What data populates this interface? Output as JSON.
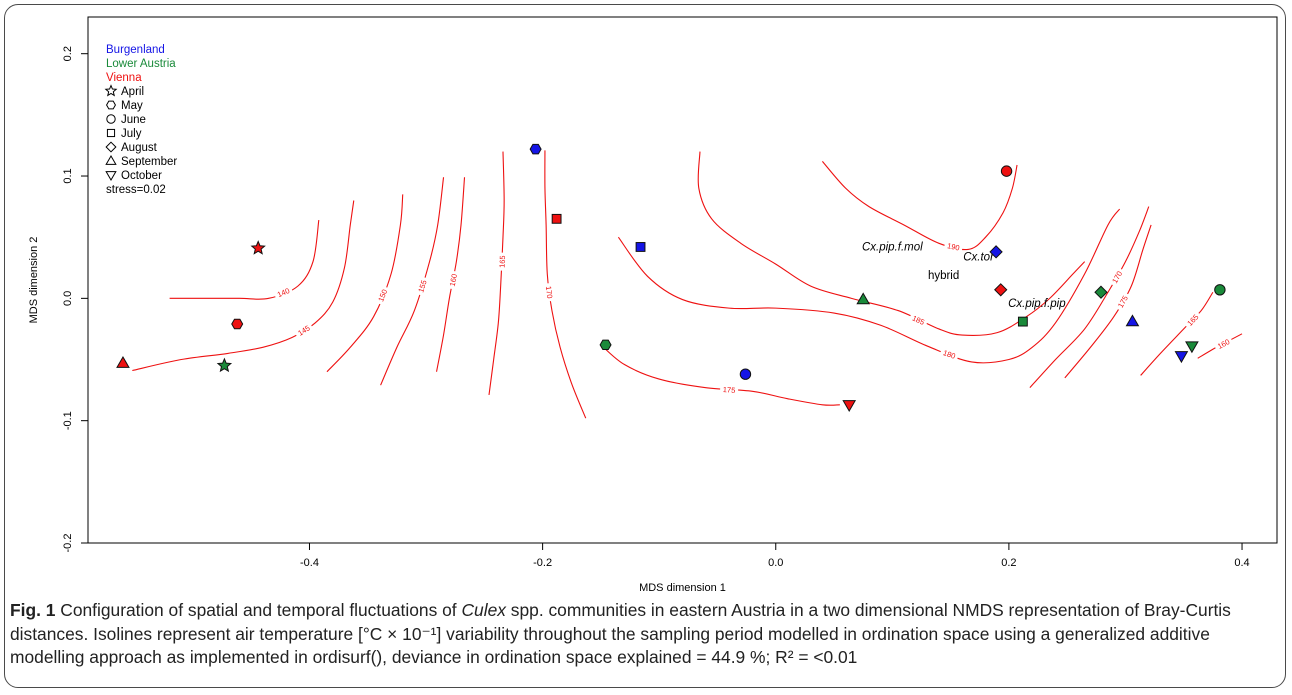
{
  "chart_data": {
    "type": "scatter",
    "xlabel": "MDS dimension 1",
    "ylabel": "MDS dimension 2",
    "xlim": [
      -0.59,
      0.43
    ],
    "ylim": [
      -0.2,
      0.23
    ],
    "xticks": [
      "-0.4",
      "-0.2",
      "0.0",
      "0.2",
      "0.4"
    ],
    "xtick_values": [
      -0.4,
      -0.2,
      0.0,
      0.2,
      0.4
    ],
    "yticks": [
      "-0.2",
      "-0.1",
      "0.0",
      "0.1",
      "0.2"
    ],
    "ytick_values": [
      -0.2,
      -0.1,
      0.0,
      0.1,
      0.2
    ],
    "grid": false,
    "legend_position": "top-left",
    "legend": {
      "regions": [
        {
          "label": "Burgenland",
          "color": "#1515e6"
        },
        {
          "label": "Lower Austria",
          "color": "#1a8a3a"
        },
        {
          "label": "Vienna",
          "color": "#ee1111"
        }
      ],
      "months": [
        {
          "label": "April",
          "shape": "star"
        },
        {
          "label": "May",
          "shape": "hexagon"
        },
        {
          "label": "June",
          "shape": "circle"
        },
        {
          "label": "July",
          "shape": "square"
        },
        {
          "label": "August",
          "shape": "diamond"
        },
        {
          "label": "September",
          "shape": "triangle-up"
        },
        {
          "label": "October",
          "shape": "triangle-down"
        }
      ],
      "stress": "stress=0.02"
    },
    "points": [
      {
        "x": -0.206,
        "y": 0.122,
        "region": "Burgenland",
        "month": "May"
      },
      {
        "x": -0.026,
        "y": -0.062,
        "region": "Burgenland",
        "month": "June"
      },
      {
        "x": -0.116,
        "y": 0.042,
        "region": "Burgenland",
        "month": "July"
      },
      {
        "x": 0.189,
        "y": 0.038,
        "region": "Burgenland",
        "month": "August"
      },
      {
        "x": 0.306,
        "y": -0.019,
        "region": "Burgenland",
        "month": "September"
      },
      {
        "x": 0.348,
        "y": -0.047,
        "region": "Burgenland",
        "month": "October"
      },
      {
        "x": -0.473,
        "y": -0.055,
        "region": "Lower Austria",
        "month": "April"
      },
      {
        "x": -0.146,
        "y": -0.038,
        "region": "Lower Austria",
        "month": "May"
      },
      {
        "x": 0.381,
        "y": 0.007,
        "region": "Lower Austria",
        "month": "June"
      },
      {
        "x": 0.212,
        "y": -0.019,
        "region": "Lower Austria",
        "month": "July"
      },
      {
        "x": 0.279,
        "y": 0.005,
        "region": "Lower Austria",
        "month": "August"
      },
      {
        "x": 0.075,
        "y": -0.001,
        "region": "Lower Austria",
        "month": "September"
      },
      {
        "x": 0.357,
        "y": -0.039,
        "region": "Lower Austria",
        "month": "October"
      },
      {
        "x": -0.444,
        "y": 0.041,
        "region": "Vienna",
        "month": "April"
      },
      {
        "x": -0.462,
        "y": -0.021,
        "region": "Vienna",
        "month": "May"
      },
      {
        "x": 0.198,
        "y": 0.104,
        "region": "Vienna",
        "month": "June"
      },
      {
        "x": -0.188,
        "y": 0.065,
        "region": "Vienna",
        "month": "July"
      },
      {
        "x": 0.193,
        "y": 0.007,
        "region": "Vienna",
        "month": "August"
      },
      {
        "x": -0.56,
        "y": -0.053,
        "region": "Vienna",
        "month": "September"
      },
      {
        "x": 0.063,
        "y": -0.087,
        "region": "Vienna",
        "month": "October"
      }
    ],
    "species_labels": [
      {
        "text": "Cx.pip.f.mol",
        "x": 0.1,
        "y": 0.039,
        "italic": true
      },
      {
        "text": "Cx.tor",
        "x": 0.174,
        "y": 0.031,
        "italic": true
      },
      {
        "text": "hybrid",
        "x": 0.144,
        "y": 0.016,
        "italic": false
      },
      {
        "text": "Cx.pip.f.pip",
        "x": 0.224,
        "y": -0.007,
        "italic": true
      }
    ],
    "contours": [
      {
        "level": "140",
        "color": "#ee1111",
        "points": [
          [
            -0.52,
            0.0
          ],
          [
            -0.49,
            0.0
          ],
          [
            -0.46,
            0.0
          ],
          [
            -0.435,
            0.0
          ],
          [
            -0.41,
            0.01
          ],
          [
            -0.397,
            0.03
          ],
          [
            -0.392,
            0.064
          ]
        ]
      },
      {
        "level": "145",
        "color": "#ee1111",
        "points": [
          [
            -0.552,
            -0.059
          ],
          [
            -0.51,
            -0.05
          ],
          [
            -0.47,
            -0.045
          ],
          [
            -0.44,
            -0.04
          ],
          [
            -0.415,
            -0.032
          ],
          [
            -0.395,
            -0.02
          ],
          [
            -0.38,
            -0.003
          ],
          [
            -0.37,
            0.025
          ],
          [
            -0.365,
            0.06
          ],
          [
            -0.362,
            0.08
          ]
        ]
      },
      {
        "level": "150",
        "color": "#ee1111",
        "points": [
          [
            -0.385,
            -0.06
          ],
          [
            -0.365,
            -0.04
          ],
          [
            -0.345,
            -0.015
          ],
          [
            -0.33,
            0.02
          ],
          [
            -0.322,
            0.06
          ],
          [
            -0.32,
            0.085
          ]
        ]
      },
      {
        "level": "155",
        "color": "#ee1111",
        "points": [
          [
            -0.339,
            -0.071
          ],
          [
            -0.325,
            -0.04
          ],
          [
            -0.31,
            -0.01
          ],
          [
            -0.297,
            0.03
          ],
          [
            -0.29,
            0.06
          ],
          [
            -0.285,
            0.099
          ]
        ]
      },
      {
        "level": "160",
        "color": "#ee1111",
        "points": [
          [
            -0.291,
            -0.06
          ],
          [
            -0.285,
            -0.03
          ],
          [
            -0.28,
            0.0
          ],
          [
            -0.274,
            0.03
          ],
          [
            -0.27,
            0.06
          ],
          [
            -0.267,
            0.099
          ]
        ]
      },
      {
        "level": "165",
        "color": "#ee1111",
        "points": [
          [
            -0.246,
            -0.079
          ],
          [
            -0.242,
            -0.05
          ],
          [
            -0.238,
            -0.02
          ],
          [
            -0.236,
            0.01
          ],
          [
            -0.234,
            0.05
          ],
          [
            -0.233,
            0.08
          ],
          [
            -0.234,
            0.12
          ]
        ]
      },
      {
        "level": "170",
        "color": "#ee1111",
        "points": [
          [
            -0.163,
            -0.098
          ],
          [
            -0.175,
            -0.07
          ],
          [
            -0.185,
            -0.04
          ],
          [
            -0.192,
            -0.01
          ],
          [
            -0.196,
            0.02
          ],
          [
            -0.197,
            0.06
          ],
          [
            -0.198,
            0.09
          ],
          [
            -0.198,
            0.121
          ]
        ]
      },
      {
        "level": "175",
        "color": "#ee1111",
        "points": [
          [
            -0.15,
            -0.038
          ],
          [
            -0.13,
            -0.054
          ],
          [
            -0.1,
            -0.066
          ],
          [
            -0.06,
            -0.073
          ],
          [
            -0.02,
            -0.076
          ],
          [
            0.01,
            -0.082
          ],
          [
            0.04,
            -0.087
          ],
          [
            0.055,
            -0.087
          ]
        ]
      },
      {
        "level": "180",
        "color": "#ee1111",
        "points": [
          [
            -0.135,
            0.05
          ],
          [
            -0.11,
            0.018
          ],
          [
            -0.08,
            -0.001
          ],
          [
            -0.04,
            -0.008
          ],
          [
            0.0,
            -0.008
          ],
          [
            0.05,
            -0.012
          ],
          [
            0.09,
            -0.022
          ],
          [
            0.13,
            -0.039
          ],
          [
            0.168,
            -0.052
          ],
          [
            0.2,
            -0.05
          ],
          [
            0.22,
            -0.04
          ],
          [
            0.24,
            -0.02
          ],
          [
            0.265,
            0.02
          ],
          [
            0.285,
            0.06
          ],
          [
            0.295,
            0.073
          ]
        ]
      },
      {
        "level": "185",
        "color": "#ee1111",
        "points": [
          [
            -0.065,
            0.12
          ],
          [
            -0.066,
            0.09
          ],
          [
            -0.055,
            0.065
          ],
          [
            -0.03,
            0.045
          ],
          [
            0.0,
            0.028
          ],
          [
            0.03,
            0.01
          ],
          [
            0.065,
            0.0
          ],
          [
            0.105,
            -0.01
          ],
          [
            0.14,
            -0.025
          ],
          [
            0.16,
            -0.03
          ],
          [
            0.19,
            -0.028
          ],
          [
            0.215,
            -0.015
          ],
          [
            0.235,
            0.0
          ],
          [
            0.255,
            0.02
          ],
          [
            0.265,
            0.03
          ]
        ]
      },
      {
        "level": "190",
        "color": "#ee1111",
        "points": [
          [
            0.04,
            0.112
          ],
          [
            0.06,
            0.09
          ],
          [
            0.08,
            0.075
          ],
          [
            0.11,
            0.06
          ],
          [
            0.14,
            0.045
          ],
          [
            0.165,
            0.04
          ],
          [
            0.18,
            0.05
          ],
          [
            0.195,
            0.07
          ],
          [
            0.203,
            0.09
          ],
          [
            0.207,
            0.109
          ]
        ]
      },
      {
        "level": "170",
        "color": "#ee1111",
        "points": [
          [
            0.218,
            -0.073
          ],
          [
            0.24,
            -0.05
          ],
          [
            0.265,
            -0.025
          ],
          [
            0.285,
            0.005
          ],
          [
            0.3,
            0.03
          ],
          [
            0.312,
            0.055
          ],
          [
            0.32,
            0.075
          ]
        ]
      },
      {
        "level": "175",
        "color": "#ee1111",
        "points": [
          [
            0.248,
            -0.065
          ],
          [
            0.27,
            -0.04
          ],
          [
            0.29,
            -0.015
          ],
          [
            0.305,
            0.01
          ],
          [
            0.315,
            0.04
          ],
          [
            0.322,
            0.06
          ]
        ]
      },
      {
        "level": "165",
        "color": "#ee1111",
        "points": [
          [
            0.313,
            -0.063
          ],
          [
            0.33,
            -0.045
          ],
          [
            0.35,
            -0.025
          ],
          [
            0.365,
            -0.01
          ],
          [
            0.375,
            0.005
          ]
        ]
      },
      {
        "level": "160",
        "color": "#ee1111",
        "points": [
          [
            0.362,
            -0.049
          ],
          [
            0.378,
            -0.04
          ],
          [
            0.39,
            -0.034
          ],
          [
            0.4,
            -0.029
          ]
        ]
      }
    ]
  },
  "caption": {
    "fig_label": "Fig. 1",
    "text_a": "Configuration of spatial and temporal fluctuations of",
    "italic_a": "Culex",
    "text_b": "spp. communities in eastern Austria in a two dimensional NMDS representation of Bray-Curtis distances. Isolines represent air temperature [°C × 10⁻¹] variability throughout the sampling period modelled in ordination space using a generalized additive modelling approach as implemented in ordisurf(), deviance in ordination space explained = 44.9 %; R² = <0.01"
  }
}
